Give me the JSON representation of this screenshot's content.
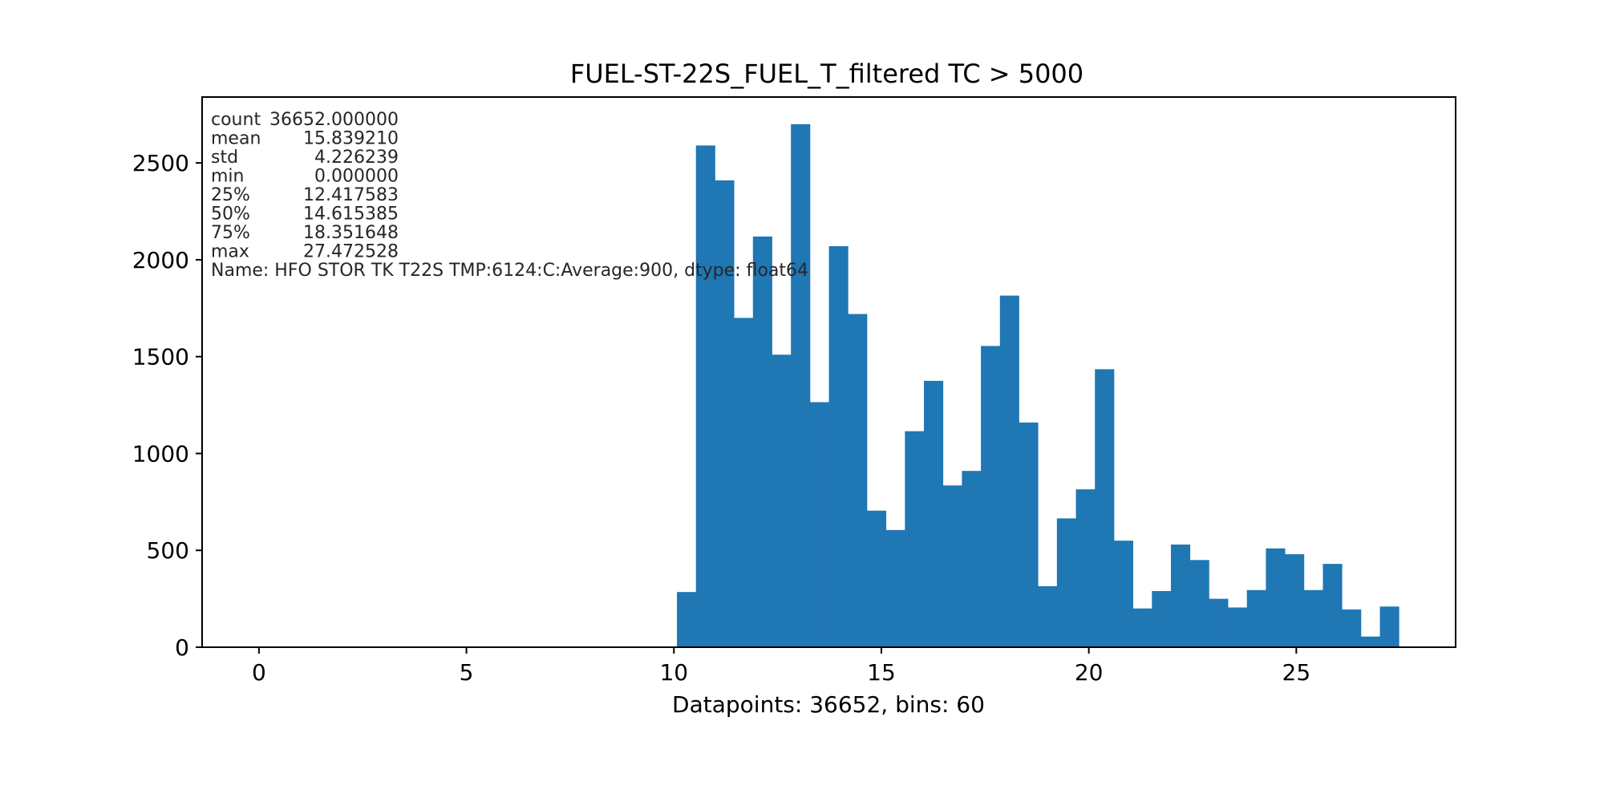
{
  "chart_data": {
    "type": "bar",
    "title": "FUEL-ST-22S_FUEL_T_filtered TC > 5000",
    "xlabel": "Datapoints: 36652, bins: 60",
    "ylabel": "",
    "xlim": [
      -1.37,
      28.84
    ],
    "ylim": [
      0,
      2840
    ],
    "xticks": [
      0,
      5,
      10,
      15,
      20,
      25
    ],
    "yticks": [
      0,
      500,
      1000,
      1500,
      2000,
      2500
    ],
    "grid": false,
    "bar_color": "#1f77b4",
    "bin_range": [
      0,
      27.472528
    ],
    "bin_count": 60,
    "values": [
      0,
      0,
      0,
      0,
      0,
      0,
      0,
      0,
      0,
      0,
      0,
      0,
      0,
      0,
      0,
      0,
      0,
      0,
      0,
      0,
      0,
      0,
      285,
      2590,
      2410,
      1700,
      2120,
      1510,
      2700,
      1265,
      2070,
      1720,
      705,
      605,
      1115,
      1375,
      835,
      910,
      1555,
      1815,
      1160,
      315,
      665,
      815,
      1435,
      550,
      200,
      290,
      530,
      450,
      250,
      205,
      295,
      510,
      480,
      295,
      430,
      195,
      55,
      210
    ],
    "stats_lines": [
      {
        "key": "count",
        "value": "36652.000000"
      },
      {
        "key": "mean",
        "value": "15.839210"
      },
      {
        "key": "std",
        "value": "4.226239"
      },
      {
        "key": "min",
        "value": "0.000000"
      },
      {
        "key": "25%",
        "value": "12.417583"
      },
      {
        "key": "50%",
        "value": "14.615385"
      },
      {
        "key": "75%",
        "value": "18.351648"
      },
      {
        "key": "max",
        "value": "27.472528"
      }
    ],
    "stats_footer": "Name: HFO STOR TK T22S TMP:6124:C:Average:900, dtype: float64"
  }
}
